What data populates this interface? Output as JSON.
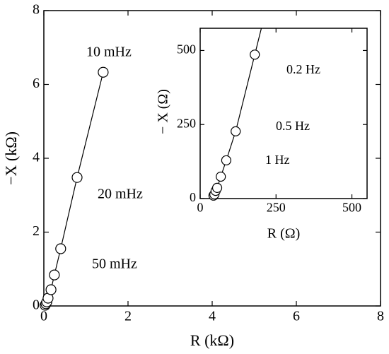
{
  "chart_data": [
    {
      "type": "scatter",
      "x_label": "R (kΩ)",
      "y_label": "−X (kΩ)",
      "x": [
        1.41,
        0.79,
        0.4,
        0.25,
        0.17,
        0.1,
        0.07,
        0.05,
        0.03
      ],
      "values": [
        6.33,
        3.48,
        1.55,
        0.84,
        0.44,
        0.21,
        0.11,
        0.06,
        0.02
      ],
      "xlim": [
        0,
        8
      ],
      "ylim": [
        0,
        8
      ],
      "xticks": [
        0,
        2,
        4,
        6,
        8
      ],
      "yticks": [
        0,
        2,
        4,
        6,
        8
      ],
      "annotations": [
        "10 mHz",
        "20 mHz",
        "50 mHz"
      ]
    },
    {
      "type": "scatter",
      "x_label": "R (Ω)",
      "y_label": "− X (Ω)",
      "x": [
        180,
        117,
        86,
        68,
        56,
        51,
        47,
        44
      ],
      "values": [
        486,
        227,
        129,
        74,
        36,
        26,
        14,
        10
      ],
      "xlim": [
        0,
        550
      ],
      "ylim": [
        0,
        575
      ],
      "xticks": [
        0,
        250,
        500
      ],
      "yticks": [
        0,
        250,
        500
      ],
      "annotations": [
        "0.2 Hz",
        "0.5 Hz",
        "1 Hz"
      ]
    }
  ]
}
